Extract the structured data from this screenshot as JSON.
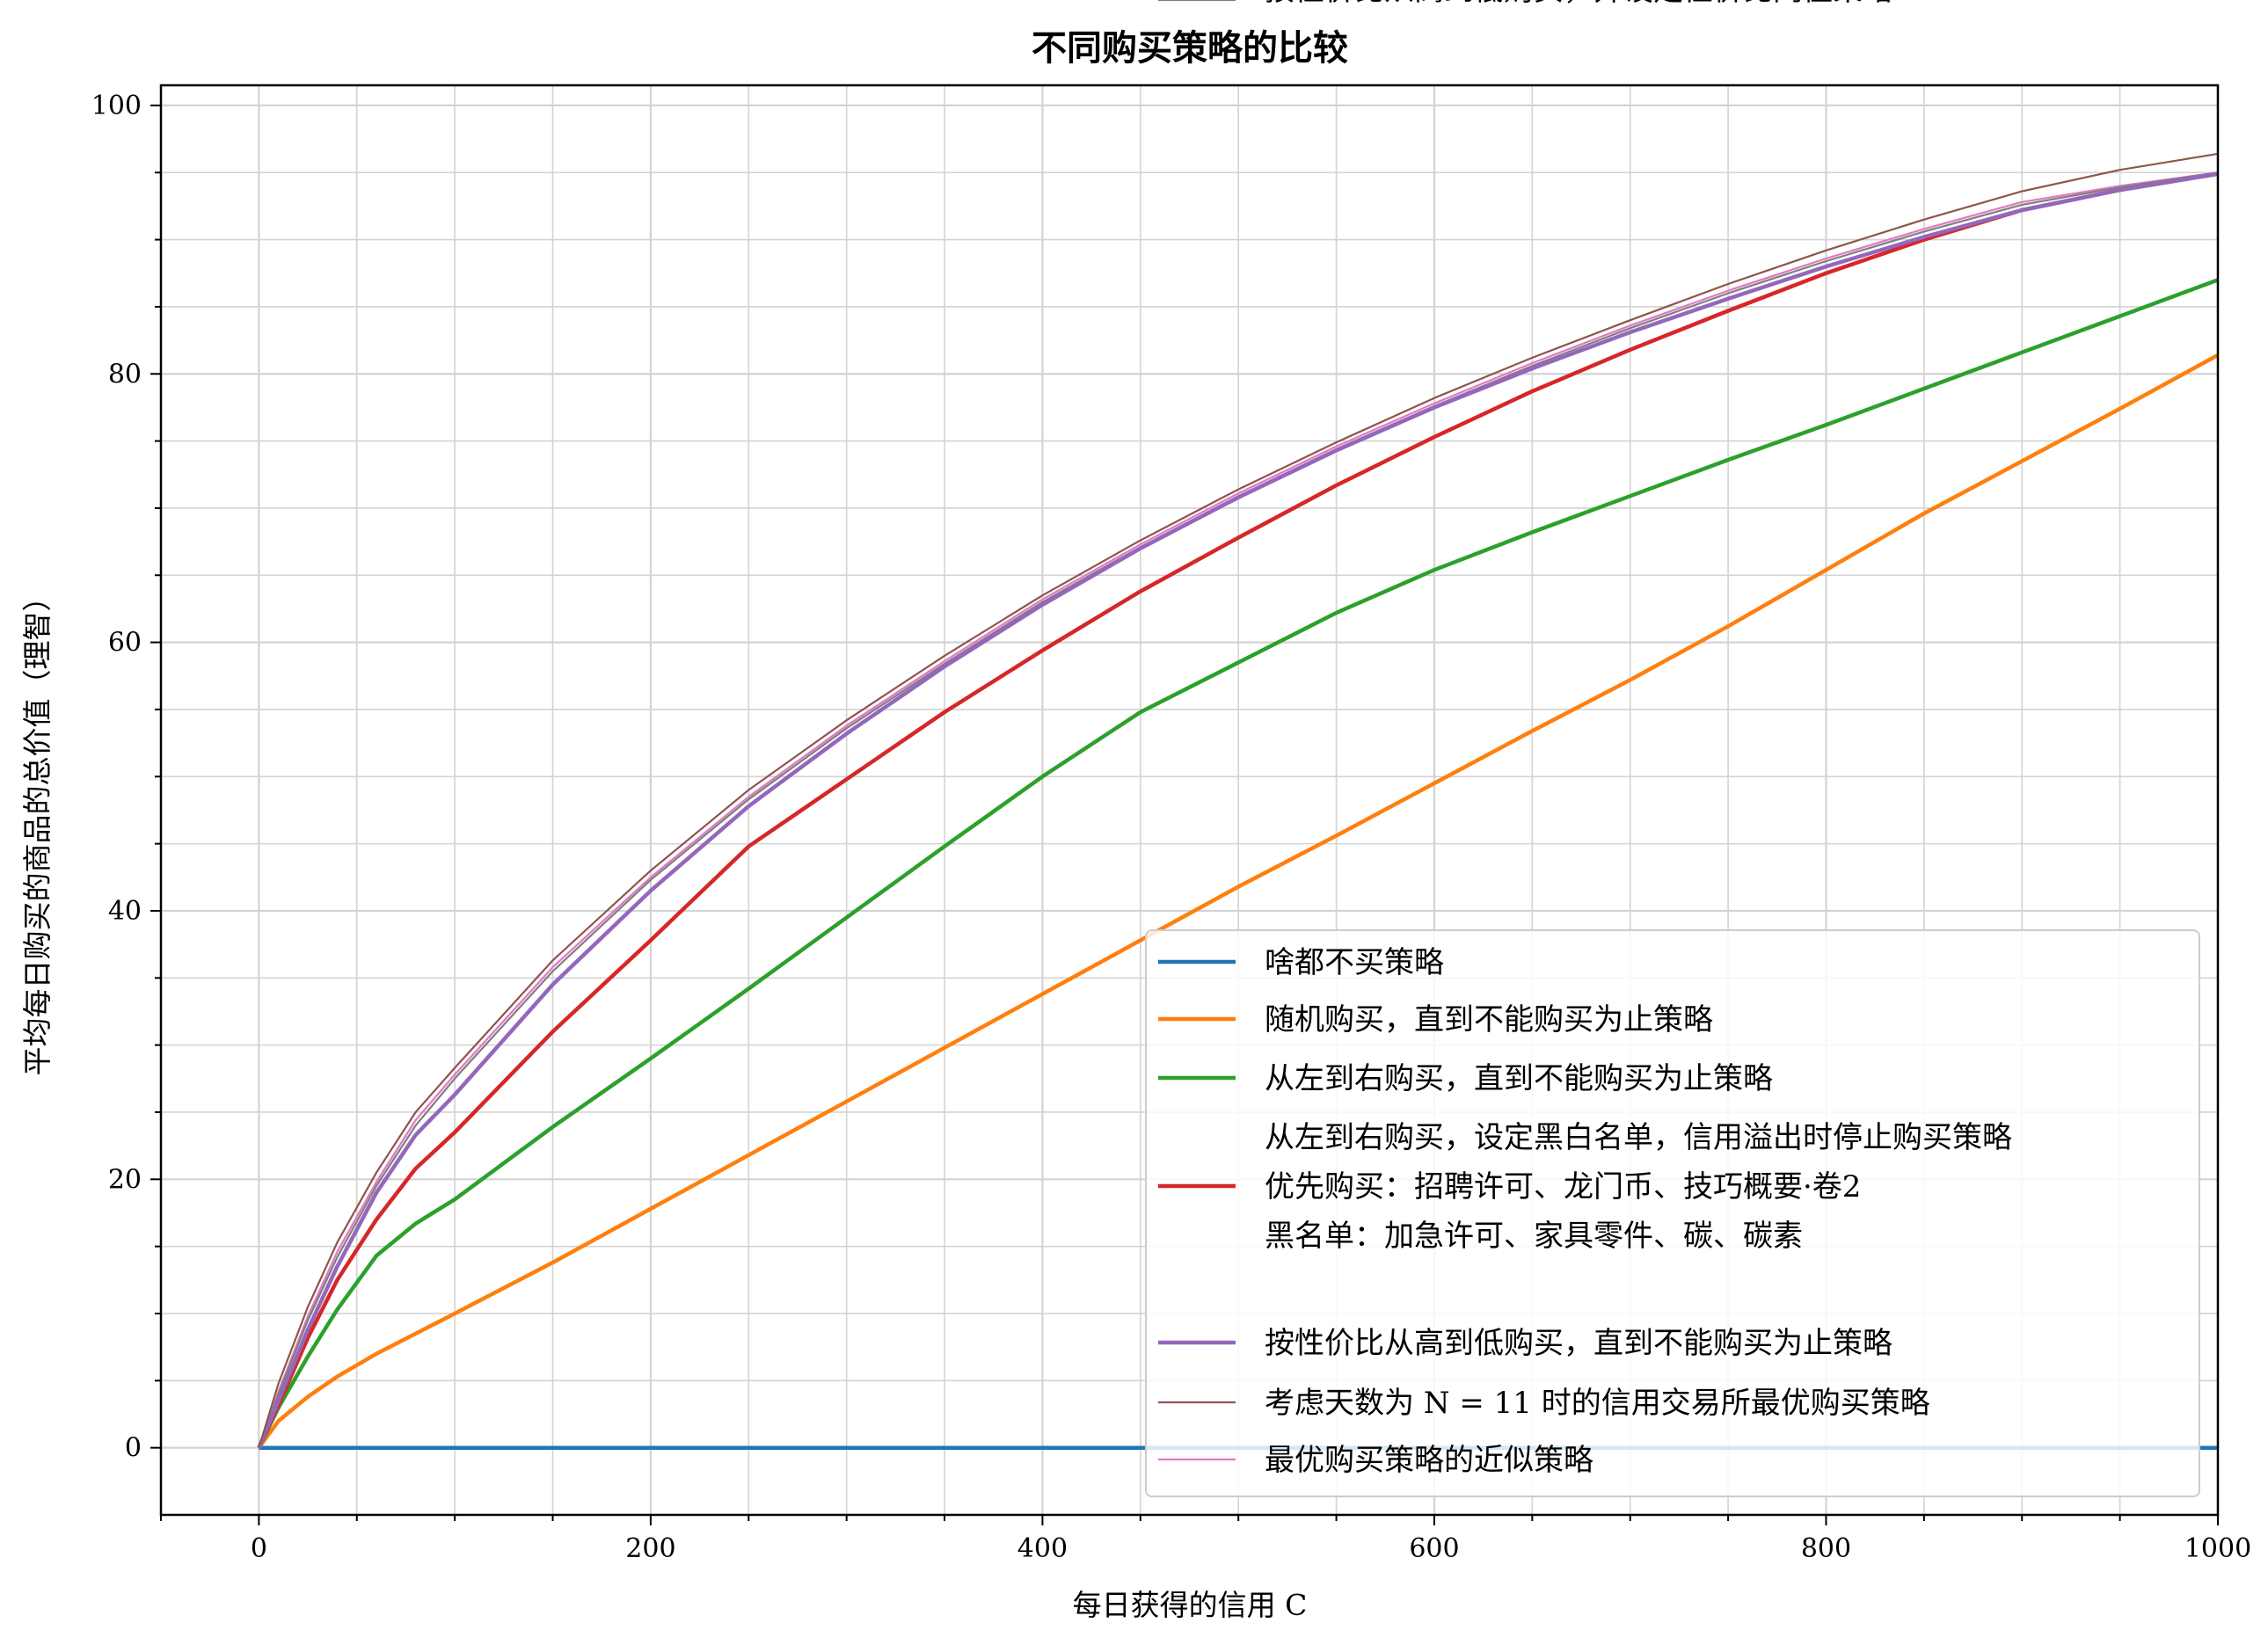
{
  "chart_data": {
    "type": "line",
    "title": "不同购买策略的比较",
    "xlabel": "每日获得的信用 C",
    "ylabel": "平均每日购买的商品的总价值（理智）",
    "xlim": [
      -50,
      1000
    ],
    "ylim": [
      -5,
      101.5
    ],
    "x_ticks": [
      0,
      200,
      400,
      600,
      800,
      1000
    ],
    "y_ticks": [
      0,
      20,
      40,
      60,
      80,
      100
    ],
    "grid": true,
    "legend_position": "lower-right",
    "x": [
      0,
      10,
      25,
      40,
      60,
      80,
      100,
      150,
      200,
      250,
      300,
      350,
      400,
      450,
      500,
      550,
      600,
      650,
      700,
      750,
      800,
      850,
      900,
      950,
      1000
    ],
    "series": [
      {
        "name": "啥都不买策略",
        "color": "#1f77b4",
        "width": 4.5,
        "values": [
          0,
          0,
          0,
          0,
          0,
          0,
          0,
          0,
          0,
          0,
          0,
          0,
          0,
          0,
          0,
          0,
          0,
          0,
          0,
          0,
          0,
          0,
          0,
          0,
          0
        ]
      },
      {
        "name": "随机购买，直到不能购买为止策略",
        "color": "#ff7f0e",
        "width": 4.5,
        "values": [
          0,
          2.0,
          3.8,
          5.3,
          7.0,
          8.5,
          10.0,
          13.8,
          17.8,
          21.8,
          25.8,
          29.8,
          33.8,
          37.8,
          41.8,
          45.6,
          49.5,
          53.4,
          57.2,
          61.2,
          65.4,
          69.6,
          73.5,
          77.4,
          81.4
        ]
      },
      {
        "name": "从左到右购买，直到不能购买为止策略",
        "color": "#2ca02c",
        "width": 4.5,
        "values": [
          0,
          3.0,
          6.8,
          10.3,
          14.3,
          16.7,
          18.5,
          23.9,
          29.0,
          34.2,
          39.5,
          44.8,
          50.0,
          54.8,
          58.5,
          62.2,
          65.4,
          68.2,
          70.9,
          73.6,
          76.2,
          78.9,
          81.6,
          84.3,
          87.0
        ]
      },
      {
        "name": "从左到右购买，设定黑白名单，信用溢出时停止购买策略",
        "name_line2": "优先购买：招聘许可、龙门币、技巧概要·卷2",
        "name_line3": "黑名单：加急许可、家具零件、碳、碳素",
        "color": "#d62728",
        "width": 4.5,
        "values": [
          0,
          3.2,
          8.2,
          12.5,
          17.0,
          20.8,
          23.5,
          31.0,
          37.8,
          44.8,
          49.8,
          54.8,
          59.4,
          63.8,
          67.8,
          71.7,
          75.3,
          78.7,
          81.8,
          84.7,
          87.5,
          90.0,
          92.2,
          93.7,
          94.9
        ]
      },
      {
        "name": "按性价比从高到低购买，直到不能购买为止策略",
        "color": "#9467bd",
        "width": 4.5,
        "values": [
          0,
          3.5,
          8.8,
          13.5,
          19.0,
          23.3,
          26.3,
          34.5,
          41.5,
          47.8,
          53.2,
          58.2,
          62.8,
          67.0,
          70.8,
          74.3,
          77.5,
          80.4,
          83.1,
          85.6,
          88.0,
          90.2,
          92.2,
          93.7,
          94.9
        ]
      },
      {
        "name": "考虑天数为 N = 11 时的信用交易所最优购买策略",
        "color": "#8c564b",
        "width": 2.2,
        "values": [
          0,
          4.8,
          10.5,
          15.3,
          20.5,
          25.0,
          28.3,
          36.3,
          43.0,
          49.0,
          54.2,
          59.0,
          63.5,
          67.6,
          71.4,
          74.9,
          78.2,
          81.2,
          84.0,
          86.7,
          89.2,
          91.5,
          93.6,
          95.2,
          96.4
        ]
      },
      {
        "name": "最优购买策略的近似策略",
        "color": "#e377c2",
        "width": 2.2,
        "values": [
          0,
          4.2,
          9.8,
          14.6,
          19.8,
          24.4,
          27.8,
          35.8,
          42.5,
          48.5,
          53.8,
          58.6,
          63.2,
          67.3,
          71.1,
          74.6,
          77.8,
          80.8,
          83.6,
          86.2,
          88.6,
          90.8,
          92.8,
          94.0,
          95.0
        ]
      },
      {
        "name": "按性价比从高到低购买，并设定性价比阈值策略",
        "color": "#7f7f7f",
        "width": 2.2,
        "values": [
          0,
          4.0,
          9.5,
          14.2,
          19.5,
          24.0,
          27.5,
          35.5,
          42.3,
          48.3,
          53.6,
          58.4,
          63.0,
          67.1,
          70.9,
          74.4,
          77.6,
          80.6,
          83.4,
          86.0,
          88.4,
          90.6,
          92.6,
          93.9,
          95.0
        ]
      }
    ]
  }
}
